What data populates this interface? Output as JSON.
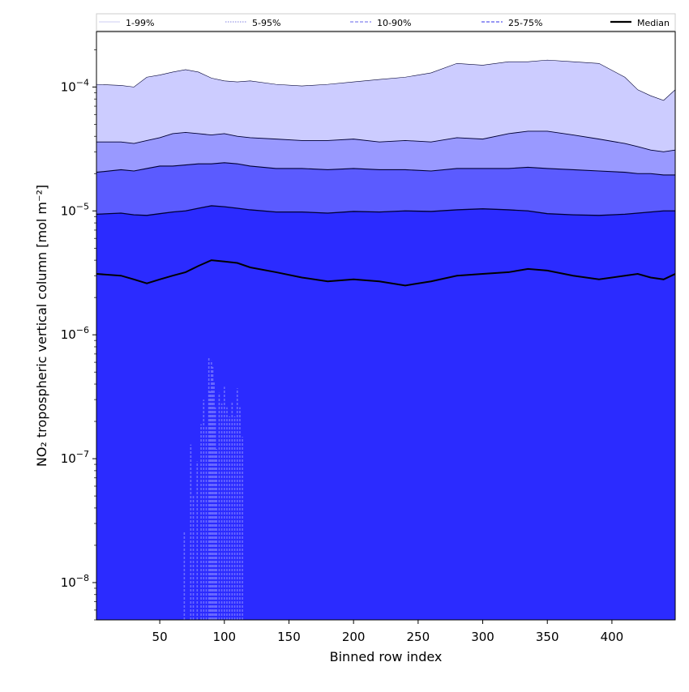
{
  "chart_data": {
    "type": "area",
    "title": "",
    "xlabel": "Binned row index",
    "ylabel": "NO₂ tropospheric vertical column [mol m⁻²]",
    "xlim": [
      1,
      449
    ],
    "ylim": [
      5e-09,
      0.00028
    ],
    "yscale": "log",
    "grid": false,
    "legend_position": "top",
    "x_ticks": [
      50,
      100,
      150,
      200,
      250,
      300,
      350,
      400
    ],
    "y_ticks": [
      {
        "value": 1e-08,
        "base": "10",
        "exp": "−8"
      },
      {
        "value": 1e-07,
        "base": "10",
        "exp": "−7"
      },
      {
        "value": 1e-06,
        "base": "10",
        "exp": "−6"
      },
      {
        "value": 1e-05,
        "base": "10",
        "exp": "−5"
      },
      {
        "value": 0.0001,
        "base": "10",
        "exp": "−4"
      }
    ],
    "legend": [
      {
        "label": "1-99%",
        "color": "#d8d8f5",
        "dash": "solid"
      },
      {
        "label": "5-95%",
        "color": "#9a9ae8",
        "dash": "dotted"
      },
      {
        "label": "10-90%",
        "color": "#8585ef",
        "dash": "dashed"
      },
      {
        "label": "25-75%",
        "color": "#5a5aee",
        "dash": "dashed"
      },
      {
        "label": "Median",
        "color": "#000000",
        "dash": "solid"
      }
    ],
    "x": [
      1,
      20,
      30,
      40,
      50,
      60,
      70,
      80,
      90,
      100,
      110,
      120,
      140,
      160,
      180,
      200,
      220,
      240,
      260,
      280,
      300,
      320,
      335,
      350,
      370,
      390,
      410,
      420,
      430,
      440,
      449
    ],
    "bands": [
      {
        "name": "1-99%",
        "fill": "#ccccff",
        "lower": [
          5e-09,
          5e-09,
          5e-09,
          5e-09,
          5e-09,
          5e-09,
          5e-09,
          5e-09,
          5e-09,
          5e-09,
          5e-09,
          5e-09,
          5e-09,
          5e-09,
          5e-09,
          5e-09,
          5e-09,
          5e-09,
          5e-09,
          5e-09,
          5e-09,
          5e-09,
          5e-09,
          5e-09,
          5e-09,
          5e-09,
          5e-09,
          5e-09,
          5e-09,
          5e-09,
          5e-09
        ],
        "upper": [
          0.000105,
          0.000103,
          0.0001,
          0.00012,
          0.000125,
          0.000132,
          0.000138,
          0.000132,
          0.000118,
          0.000112,
          0.00011,
          0.000112,
          0.000105,
          0.000102,
          0.000105,
          0.00011,
          0.000115,
          0.00012,
          0.00013,
          0.000155,
          0.00015,
          0.00016,
          0.00016,
          0.000165,
          0.00016,
          0.000155,
          0.00012,
          9.5e-05,
          8.5e-05,
          7.8e-05,
          9.5e-05
        ]
      },
      {
        "name": "5-95%",
        "fill": "#9999ff",
        "lower": [
          5e-09,
          5e-09,
          5e-09,
          5e-09,
          5e-09,
          5e-09,
          5e-09,
          5e-09,
          5e-09,
          5e-09,
          5e-09,
          5e-09,
          5e-09,
          5e-09,
          5e-09,
          5e-09,
          5e-09,
          5e-09,
          5e-09,
          5e-09,
          5e-09,
          5e-09,
          5e-09,
          5e-09,
          5e-09,
          5e-09,
          5e-09,
          5e-09,
          5e-09,
          5e-09,
          5e-09
        ],
        "upper": [
          3.6e-05,
          3.6e-05,
          3.5e-05,
          3.7e-05,
          3.9e-05,
          4.2e-05,
          4.3e-05,
          4.2e-05,
          4.1e-05,
          4.2e-05,
          4e-05,
          3.9e-05,
          3.8e-05,
          3.7e-05,
          3.7e-05,
          3.8e-05,
          3.6e-05,
          3.7e-05,
          3.6e-05,
          3.9e-05,
          3.8e-05,
          4.2e-05,
          4.4e-05,
          4.4e-05,
          4.1e-05,
          3.8e-05,
          3.5e-05,
          3.3e-05,
          3.1e-05,
          3e-05,
          3.1e-05
        ]
      },
      {
        "name": "10-90%",
        "fill": "#5b5bff",
        "lower": [
          5e-09,
          5e-09,
          5e-09,
          5e-09,
          5e-09,
          5e-09,
          5e-09,
          5e-09,
          5e-09,
          5e-09,
          5e-09,
          5e-09,
          5e-09,
          5e-09,
          5e-09,
          5e-09,
          5e-09,
          5e-09,
          5e-09,
          5e-09,
          5e-09,
          5e-09,
          5e-09,
          5e-09,
          5e-09,
          5e-09,
          5e-09,
          5e-09,
          5e-09,
          5e-09,
          5e-09
        ],
        "upper": [
          2.05e-05,
          2.15e-05,
          2.1e-05,
          2.2e-05,
          2.3e-05,
          2.3e-05,
          2.35e-05,
          2.4e-05,
          2.4e-05,
          2.45e-05,
          2.4e-05,
          2.3e-05,
          2.2e-05,
          2.2e-05,
          2.15e-05,
          2.2e-05,
          2.15e-05,
          2.15e-05,
          2.1e-05,
          2.2e-05,
          2.2e-05,
          2.2e-05,
          2.25e-05,
          2.2e-05,
          2.15e-05,
          2.1e-05,
          2.05e-05,
          2e-05,
          2e-05,
          1.95e-05,
          1.95e-05
        ]
      },
      {
        "name": "25-75%",
        "fill": "#2b2bff",
        "lower": [
          5e-09,
          5e-09,
          5e-09,
          5e-09,
          5e-09,
          5e-09,
          5e-09,
          5e-09,
          5e-09,
          5e-09,
          5e-09,
          5e-09,
          5e-09,
          5e-09,
          5e-09,
          5e-09,
          5e-09,
          5e-09,
          5e-09,
          5e-09,
          5e-09,
          5e-09,
          5e-09,
          5e-09,
          5e-09,
          5e-09,
          5e-09,
          5e-09,
          5e-09,
          5e-09,
          5e-09
        ],
        "upper": [
          9.4e-06,
          9.6e-06,
          9.3e-06,
          9.2e-06,
          9.5e-06,
          9.8e-06,
          1e-05,
          1.05e-05,
          1.1e-05,
          1.08e-05,
          1.05e-05,
          1.02e-05,
          9.8e-06,
          9.8e-06,
          9.6e-06,
          9.9e-06,
          9.8e-06,
          1e-05,
          9.9e-06,
          1.02e-05,
          1.04e-05,
          1.02e-05,
          1e-05,
          9.5e-06,
          9.3e-06,
          9.2e-06,
          9.4e-06,
          9.6e-06,
          9.8e-06,
          1e-05,
          1e-05
        ]
      }
    ],
    "median": [
      3.1e-06,
      3e-06,
      2.8e-06,
      2.6e-06,
      2.8e-06,
      3e-06,
      3.2e-06,
      3.6e-06,
      4e-06,
      3.9e-06,
      3.8e-06,
      3.5e-06,
      3.2e-06,
      2.9e-06,
      2.7e-06,
      2.8e-06,
      2.7e-06,
      2.5e-06,
      2.7e-06,
      3e-06,
      3.1e-06,
      3.2e-06,
      3.4e-06,
      3.3e-06,
      3e-06,
      2.8e-06,
      3e-06,
      3.1e-06,
      2.9e-06,
      2.8e-06,
      3.1e-06
    ],
    "low_tail": {
      "x": [
        69,
        74,
        76,
        79,
        82,
        84,
        86,
        88,
        89,
        90,
        91,
        92,
        93,
        94,
        96,
        98,
        100,
        102,
        104,
        106,
        108,
        110,
        112,
        114
      ],
      "values": [
        2.6e-08,
        1.3e-07,
        5e-08,
        9.5e-08,
        1.9e-07,
        3e-07,
        1.8e-07,
        6.5e-07,
        3.5e-07,
        6.2e-07,
        5.5e-07,
        4.2e-07,
        2.6e-07,
        1.2e-07,
        3.4e-07,
        2.8e-07,
        3.8e-07,
        2.6e-07,
        2.2e-07,
        2.9e-07,
        2.2e-07,
        3.7e-07,
        2.6e-07,
        1.5e-07
      ]
    }
  }
}
